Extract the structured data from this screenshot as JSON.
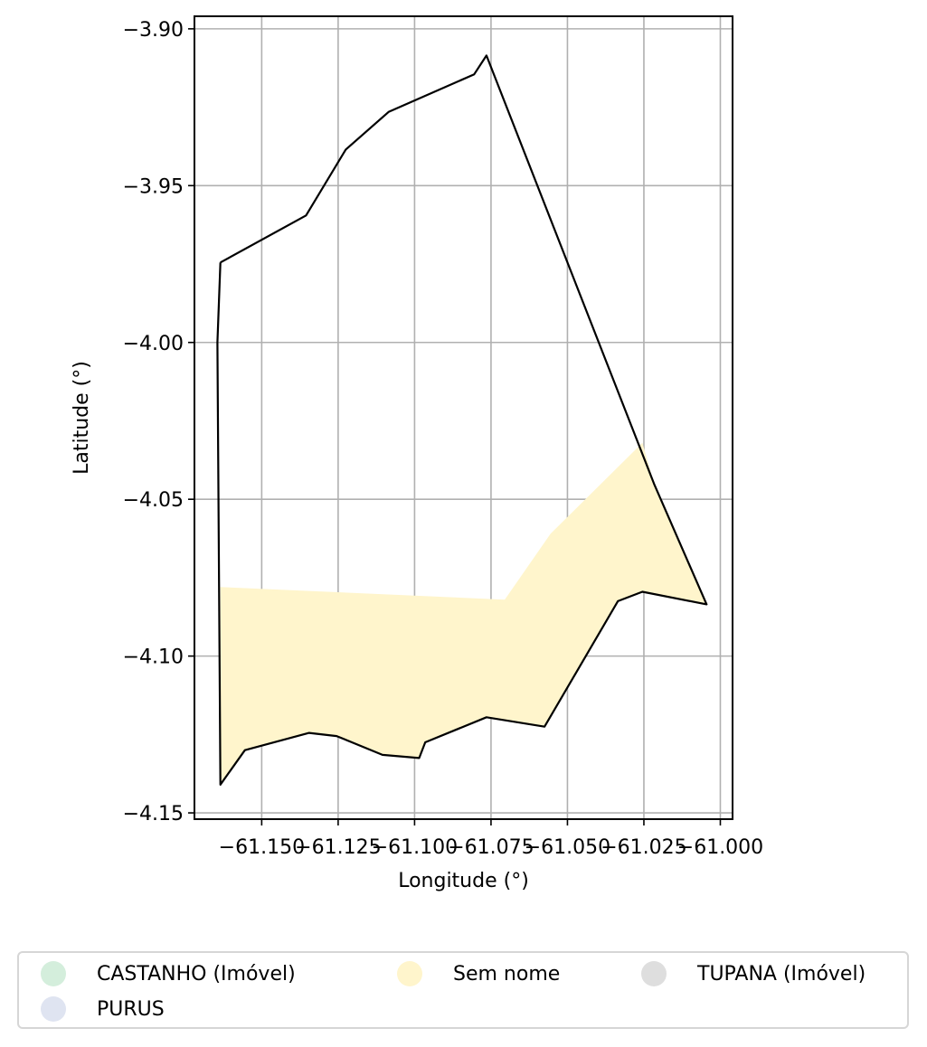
{
  "chart_data": {
    "type": "map",
    "xlabel": "Longitude (°)",
    "ylabel": "Latitude (°)",
    "xlim": [
      -61.172,
      -60.996
    ],
    "ylim": [
      -4.152,
      -3.896
    ],
    "x_ticks": [
      {
        "value": -61.15,
        "label": "−61.150"
      },
      {
        "value": -61.125,
        "label": "−61.125"
      },
      {
        "value": -61.1,
        "label": "−61.100"
      },
      {
        "value": -61.075,
        "label": "−61.075"
      },
      {
        "value": -61.05,
        "label": "−61.050"
      },
      {
        "value": -61.025,
        "label": "−61.025"
      },
      {
        "value": -61.0,
        "label": "−61.000"
      }
    ],
    "y_ticks": [
      {
        "value": -3.9,
        "label": "−3.90"
      },
      {
        "value": -3.95,
        "label": "−3.95"
      },
      {
        "value": -4.0,
        "label": "−4.00"
      },
      {
        "value": -4.05,
        "label": "−4.05"
      },
      {
        "value": -4.1,
        "label": "−4.10"
      },
      {
        "value": -4.15,
        "label": "−4.15"
      }
    ],
    "grid": true,
    "legend_position": "bottom",
    "outline": {
      "color": "#000000",
      "coords": [
        [
          -61.1635,
          -3.9745
        ],
        [
          -61.1355,
          -3.9595
        ],
        [
          -61.1225,
          -3.9385
        ],
        [
          -61.1085,
          -3.9265
        ],
        [
          -61.0805,
          -3.9145
        ],
        [
          -61.0765,
          -3.9085
        ],
        [
          -61.0215,
          -4.0455
        ],
        [
          -61.0045,
          -4.0835
        ],
        [
          -61.0255,
          -4.0795
        ],
        [
          -61.0335,
          -4.0825
        ],
        [
          -61.0575,
          -4.1225
        ],
        [
          -61.0765,
          -4.1195
        ],
        [
          -61.0965,
          -4.1275
        ],
        [
          -61.0985,
          -4.1325
        ],
        [
          -61.1105,
          -4.1315
        ],
        [
          -61.1255,
          -4.1255
        ],
        [
          -61.1345,
          -4.1245
        ],
        [
          -61.1555,
          -4.13
        ],
        [
          -61.1635,
          -4.141
        ],
        [
          -61.1645,
          -4.0
        ],
        [
          -61.1635,
          -3.9745
        ]
      ]
    },
    "series": [
      {
        "name": "Sem nome",
        "color": "#fff5cc",
        "coords": [
          [
            -61.1635,
            -4.078
          ],
          [
            -61.0705,
            -4.082
          ],
          [
            -61.0555,
            -4.061
          ],
          [
            -61.0255,
            -4.032
          ],
          [
            -61.0215,
            -4.0455
          ],
          [
            -61.0045,
            -4.0835
          ],
          [
            -61.0255,
            -4.0795
          ],
          [
            -61.0335,
            -4.0825
          ],
          [
            -61.0575,
            -4.1225
          ],
          [
            -61.0765,
            -4.1195
          ],
          [
            -61.0965,
            -4.1275
          ],
          [
            -61.0985,
            -4.1325
          ],
          [
            -61.1105,
            -4.1315
          ],
          [
            -61.1255,
            -4.1255
          ],
          [
            -61.1345,
            -4.1245
          ],
          [
            -61.1555,
            -4.13
          ],
          [
            -61.1635,
            -4.141
          ]
        ]
      }
    ],
    "legend": [
      {
        "label": "CASTANHO (Imóvel)",
        "color": "#d4eedc"
      },
      {
        "label": "Sem nome",
        "color": "#fff5cc"
      },
      {
        "label": "TUPANA (Imóvel)",
        "color": "#dedede"
      },
      {
        "label": "PURUS",
        "color": "#dfe4f1"
      }
    ]
  }
}
